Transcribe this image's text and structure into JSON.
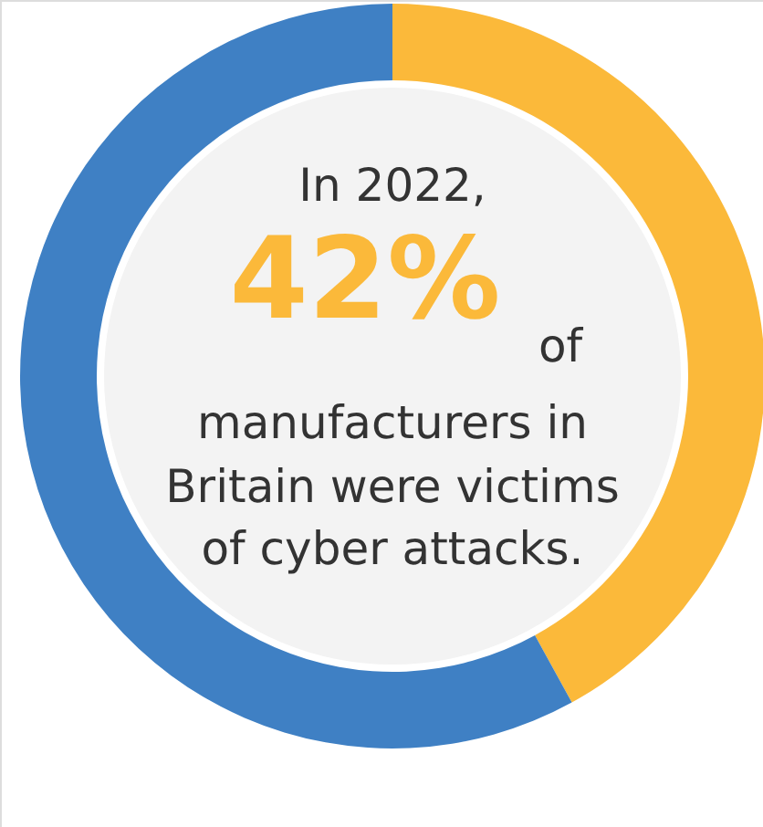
{
  "chart_data": {
    "type": "donut",
    "categories": [
      null,
      null
    ],
    "values": [
      42,
      58
    ],
    "colors": [
      "#fbb93a",
      "#3f80c4"
    ],
    "annotations": [
      "In 2022,",
      "42%",
      "of",
      "manufacturers in",
      "Britain were victims",
      "of cyber attacks."
    ]
  }
}
